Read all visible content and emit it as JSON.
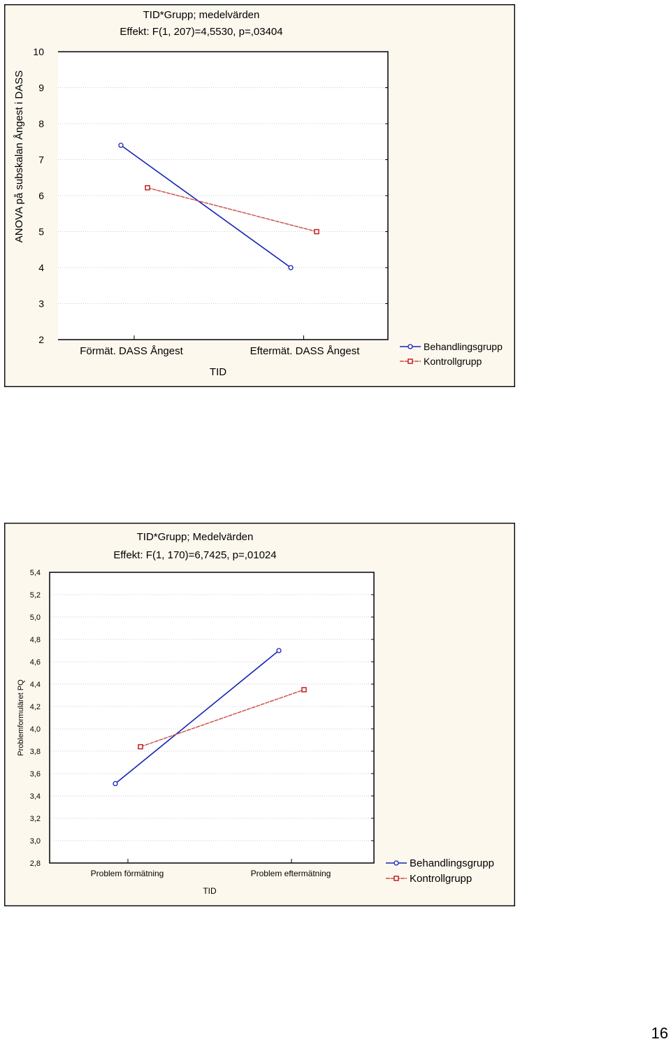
{
  "page_number": "16",
  "colors": {
    "panel_bg": "#fdf8ee",
    "plot_bg": "#ffffff",
    "grid": "#cccccc",
    "series_1": "#1424b8",
    "series_2": "#c84a44",
    "marker_2": "#c02020"
  },
  "chart_data": [
    {
      "type": "line",
      "title": "TID*Grupp; medelvärden",
      "subtitle": "Effekt: F(1, 207)=4,5530, p=,03404",
      "xlabel": "TID",
      "ylabel": "ANOVA på subskalan Ångest i DASS",
      "categories": [
        "Förmät. DASS Ångest",
        "Eftermät. DASS Ångest"
      ],
      "ylim": [
        2,
        10
      ],
      "yticks": [
        "2",
        "3",
        "4",
        "5",
        "6",
        "7",
        "8",
        "9",
        "10"
      ],
      "grid": true,
      "legend_position": "right",
      "series": [
        {
          "name": "Behandlingsgrupp",
          "marker": "circle",
          "values": [
            7.4,
            4.0
          ]
        },
        {
          "name": "Kontrollgrupp",
          "marker": "square",
          "values": [
            6.22,
            5.0
          ]
        }
      ]
    },
    {
      "type": "line",
      "title": "TID*Grupp; Medelvärden",
      "subtitle": "Effekt: F(1, 170)=6,7425, p=,01024",
      "xlabel": "TID",
      "ylabel": "Problemformuläret PQ",
      "categories": [
        "Problem förmätning",
        "Problem eftermätning"
      ],
      "ylim": [
        2.8,
        5.4
      ],
      "yticks": [
        "2,8",
        "3,0",
        "3,2",
        "3,4",
        "3,6",
        "3,8",
        "4,0",
        "4,2",
        "4,4",
        "4,6",
        "4,8",
        "5,0",
        "5,2",
        "5,4"
      ],
      "grid": true,
      "legend_position": "right",
      "series": [
        {
          "name": "Behandlingsgrupp",
          "marker": "circle",
          "values": [
            3.51,
            4.7
          ]
        },
        {
          "name": "Kontrollgrupp",
          "marker": "square",
          "values": [
            3.84,
            4.35
          ]
        }
      ]
    }
  ]
}
